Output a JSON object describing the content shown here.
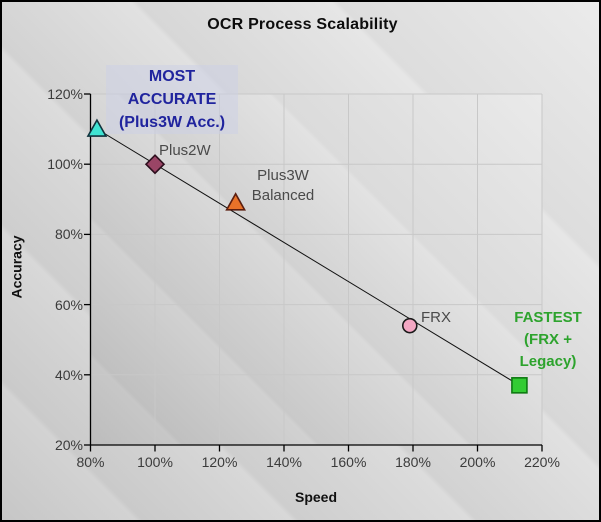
{
  "title": "OCR Process Scalability",
  "axis_titles": {
    "x": "Speed",
    "y": "Accuracy"
  },
  "x_tick_labels": [
    "80%",
    "100%",
    "120%",
    "140%",
    "160%",
    "180%",
    "200%",
    "220%"
  ],
  "y_tick_labels": [
    "120%",
    "100%",
    "80%",
    "60%",
    "40%",
    "20%"
  ],
  "point_labels": {
    "plus2w": "Plus2W",
    "plus3w_line1": "Plus3W",
    "plus3w_line2": "Balanced",
    "frx": "FRX"
  },
  "annotations": {
    "most_accurate": {
      "line1": "MOST",
      "line2": "ACCURATE",
      "line3": "(Plus3W Acc.)",
      "color": "#20249E"
    },
    "fastest": {
      "line1": "FASTEST",
      "line2": "(FRX +",
      "line3": "Legacy)",
      "color": "#2DA32D"
    }
  },
  "colors": {
    "background_grays": [
      "#bcbcbc",
      "#d3d3d3",
      "#ebebeb"
    ],
    "gridline": "#c8c8c8",
    "axis": "#000000",
    "trend_line": "#111111",
    "tick_label": "#3b3b3b",
    "point_label": "#4a4a4a"
  },
  "chart_data": {
    "type": "scatter",
    "title": "OCR Process Scalability",
    "xlabel": "Speed",
    "ylabel": "Accuracy",
    "xlim": [
      80,
      220
    ],
    "ylim": [
      20,
      120
    ],
    "x_ticks": [
      80,
      100,
      120,
      140,
      160,
      180,
      200,
      220
    ],
    "y_ticks": [
      120,
      100,
      80,
      60,
      40,
      20
    ],
    "grid": true,
    "legend": false,
    "series": [
      {
        "name": "Plus3W Acc.",
        "slug": "plus3w-acc",
        "x": 82,
        "y": 110,
        "marker": "triangle",
        "color": "#3FE3D2",
        "stroke": "#10333e"
      },
      {
        "name": "Plus2W",
        "slug": "plus2w",
        "x": 100,
        "y": 100,
        "marker": "diamond",
        "color": "#9A4566",
        "stroke": "#2e0f1e"
      },
      {
        "name": "Plus3W Balanced",
        "slug": "plus3w-balanced",
        "x": 125,
        "y": 89,
        "marker": "triangle",
        "color": "#E87229",
        "stroke": "#5C1F10"
      },
      {
        "name": "FRX",
        "slug": "frx",
        "x": 179,
        "y": 54,
        "marker": "circle",
        "color": "#F3A7C3",
        "stroke": "#1a1a1a"
      },
      {
        "name": "FRX + Legacy",
        "slug": "frx-legacy",
        "x": 213,
        "y": 37,
        "marker": "square",
        "color": "#33CC33",
        "stroke": "#0E7A12"
      }
    ],
    "trendline": {
      "from": {
        "x": 81,
        "y": 110.6
      },
      "to": {
        "x": 213,
        "y": 37
      }
    },
    "annotations": [
      "MOST ACCURATE (Plus3W Acc.)",
      "FASTEST (FRX + Legacy)"
    ]
  }
}
